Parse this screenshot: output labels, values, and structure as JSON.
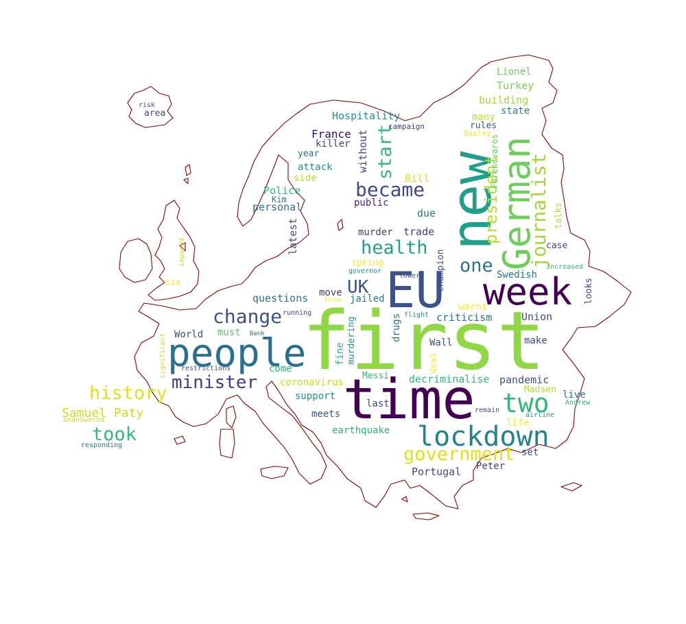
{
  "map": {
    "outline_color": "#8b0000"
  },
  "palette": {
    "v0": "#440154",
    "v1": "#472c7a",
    "v2": "#3b518b",
    "v3": "#2c718e",
    "v4": "#21918c",
    "v5": "#27ad81",
    "v6": "#5cc863",
    "v7": "#aadc32",
    "v8": "#dde318"
  },
  "words": [
    {
      "text": "first",
      "color": "#8fd744"
    },
    {
      "text": "time",
      "color": "#440154"
    },
    {
      "text": "new",
      "color": "#1f9e89"
    },
    {
      "text": "EU",
      "color": "#3b528b"
    },
    {
      "text": "people",
      "color": "#2a6f8e"
    },
    {
      "text": "German",
      "color": "#6ccd5a"
    },
    {
      "text": "week",
      "color": "#440154"
    },
    {
      "text": "lockdown",
      "color": "#26828e"
    },
    {
      "text": "two",
      "color": "#35b779"
    },
    {
      "text": "government",
      "color": "#dde318"
    },
    {
      "text": "journalist",
      "color": "#a0da39"
    },
    {
      "text": "president",
      "color": "#b5de2b"
    },
    {
      "text": "became",
      "color": "#3e4989"
    },
    {
      "text": "health",
      "color": "#20a386"
    },
    {
      "text": "start",
      "color": "#35b779"
    },
    {
      "text": "change",
      "color": "#3b528b"
    },
    {
      "text": "minister",
      "color": "#443983"
    },
    {
      "text": "history",
      "color": "#dde318"
    },
    {
      "text": "took",
      "color": "#35b779"
    },
    {
      "text": "one",
      "color": "#2c728e"
    },
    {
      "text": "UK",
      "color": "#3b528b"
    },
    {
      "text": "Samuel Paty",
      "color": "#c8e020"
    },
    {
      "text": "Hospitality",
      "color": "#21918c"
    },
    {
      "text": "Lionel",
      "color": "#6ccd5a"
    },
    {
      "text": "Turkey",
      "color": "#7ad151"
    },
    {
      "text": "building",
      "color": "#a5db36"
    },
    {
      "text": "state",
      "color": "#2a788e"
    },
    {
      "text": "many",
      "color": "#bddf26"
    },
    {
      "text": "rules",
      "color": "#3b528b"
    },
    {
      "text": "Ferencvaros",
      "color": "#6ccd5a"
    },
    {
      "text": "Bailey",
      "color": "#fde725"
    },
    {
      "text": "campaign",
      "color": "#443a83"
    },
    {
      "text": "France",
      "color": "#2c0f6b"
    },
    {
      "text": "killer",
      "color": "#3e4989"
    },
    {
      "text": "year",
      "color": "#2c728e"
    },
    {
      "text": "attack",
      "color": "#21918c"
    },
    {
      "text": "side",
      "color": "#b5de2b"
    },
    {
      "text": "Police",
      "color": "#2fb47c"
    },
    {
      "text": "Kim",
      "color": "#2c728e"
    },
    {
      "text": "personal",
      "color": "#2c728e"
    },
    {
      "text": "without",
      "color": "#3e4989"
    },
    {
      "text": "Bill",
      "color": "#dde318"
    },
    {
      "text": "public",
      "color": "#482878"
    },
    {
      "text": "due",
      "color": "#2a788e"
    },
    {
      "text": "latest",
      "color": "#3e4989"
    },
    {
      "text": "murder",
      "color": "#443983"
    },
    {
      "text": "trade",
      "color": "#443983"
    },
    {
      "text": "talks",
      "color": "#b5de2b"
    },
    {
      "text": "case",
      "color": "#3e4989"
    },
    {
      "text": "increased",
      "color": "#2fb47c"
    },
    {
      "text": "looks",
      "color": "#3e4989"
    },
    {
      "text": "spring",
      "color": "#fde725"
    },
    {
      "text": "governor",
      "color": "#21918c"
    },
    {
      "text": "lower",
      "color": "#3b528b"
    },
    {
      "text": "champion",
      "color": "#3e4989"
    },
    {
      "text": "Swedish",
      "color": "#2c728e"
    },
    {
      "text": "questions",
      "color": "#2c728e"
    },
    {
      "text": "move",
      "color": "#443983"
    },
    {
      "text": "firms",
      "color": "#fde725"
    },
    {
      "text": "jailed",
      "color": "#2c728e"
    },
    {
      "text": "warns",
      "color": "#fde725"
    },
    {
      "text": "flight",
      "color": "#21918c"
    },
    {
      "text": "criticism",
      "color": "#2c728e"
    },
    {
      "text": "Union",
      "color": "#3b528b"
    },
    {
      "text": "running",
      "color": "#3e4989"
    },
    {
      "text": "drugs",
      "color": "#2c728e"
    },
    {
      "text": "murdering",
      "color": "#21918c"
    },
    {
      "text": "fine",
      "color": "#2fb47c"
    },
    {
      "text": "World",
      "color": "#3b528b"
    },
    {
      "text": "must",
      "color": "#5ec962"
    },
    {
      "text": "Bank",
      "color": "#2c728e"
    },
    {
      "text": "Wall",
      "color": "#3e4989"
    },
    {
      "text": "make",
      "color": "#3e4989"
    },
    {
      "text": "deal",
      "color": "#fde725"
    },
    {
      "text": "imposed",
      "color": "#c2df23"
    },
    {
      "text": "six",
      "color": "#fde725"
    },
    {
      "text": "significant",
      "color": "#c8e020"
    },
    {
      "text": "restrictions",
      "color": "#3b528b"
    },
    {
      "text": "come",
      "color": "#2fb47c"
    },
    {
      "text": "Messi",
      "color": "#35b779"
    },
    {
      "text": "coronavirus",
      "color": "#c8e020"
    },
    {
      "text": "decriminalise",
      "color": "#35b779"
    },
    {
      "text": "pandemic",
      "color": "#3b528b"
    },
    {
      "text": "support",
      "color": "#21918c"
    },
    {
      "text": "last",
      "color": "#3e4989"
    },
    {
      "text": "Madsen",
      "color": "#b5de2b"
    },
    {
      "text": "live",
      "color": "#2c728e"
    },
    {
      "text": "Andrew",
      "color": "#27ad81"
    },
    {
      "text": "remain",
      "color": "#3e4989"
    },
    {
      "text": "airline",
      "color": "#21918c"
    },
    {
      "text": "life",
      "color": "#fde725"
    },
    {
      "text": "meets",
      "color": "#3b528b"
    },
    {
      "text": "earthquake",
      "color": "#2fb47c"
    },
    {
      "text": "set",
      "color": "#3e4989"
    },
    {
      "text": "Portugal",
      "color": "#3e4989"
    },
    {
      "text": "Peter",
      "color": "#443983"
    },
    {
      "text": "unanswered",
      "color": "#c8e020"
    },
    {
      "text": "responding",
      "color": "#2c728e"
    },
    {
      "text": "risk",
      "color": "#3b528b"
    },
    {
      "text": "area",
      "color": "#3e4989"
    }
  ]
}
